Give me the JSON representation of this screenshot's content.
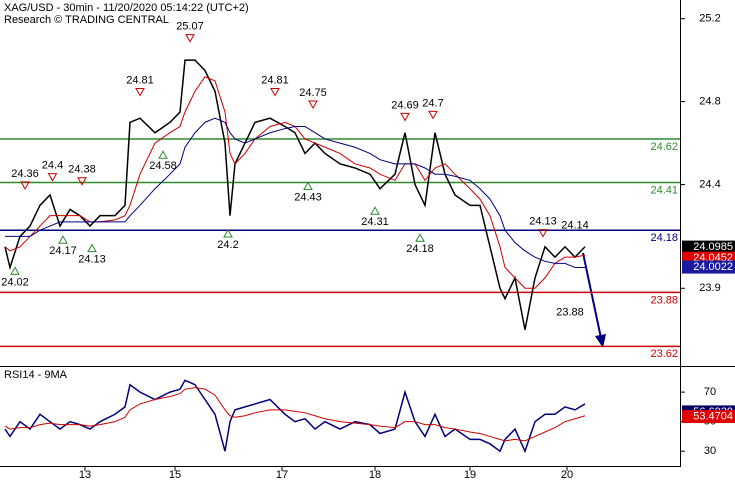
{
  "chart_data": {
    "type": "line",
    "title": "XAG/USD - 30min - 11/20/2020 05:14:22 (UTC+2)",
    "subtitle": "Research © TRADING CENTRAL",
    "xlim": [
      0,
      136
    ],
    "xticks": [
      {
        "value": 17,
        "label": "13"
      },
      {
        "value": 35,
        "label": "15"
      },
      {
        "value": 56.4,
        "label": "17"
      },
      {
        "value": 75,
        "label": "18"
      },
      {
        "value": 94,
        "label": "19"
      },
      {
        "value": 113.4,
        "label": "20"
      }
    ],
    "ylim": [
      23.53,
      25.29
    ],
    "yticks": [
      25.2,
      24.8,
      24.4,
      23.9
    ],
    "x": [
      1,
      2,
      4,
      6,
      8,
      10,
      12,
      14,
      16,
      18,
      20,
      23,
      25,
      26,
      28,
      31,
      34,
      36,
      37,
      39,
      41,
      43,
      45,
      46,
      47,
      49,
      51,
      54,
      57,
      59,
      61,
      63,
      65,
      68,
      71,
      74,
      76,
      79,
      81,
      83,
      85,
      87,
      89,
      91,
      94,
      96,
      98,
      100,
      101,
      103,
      105,
      107,
      109,
      111,
      113,
      115,
      117
    ],
    "series": [
      {
        "color": "#000000",
        "values": [
          24.1,
          24.0,
          24.15,
          24.2,
          24.3,
          24.35,
          24.2,
          24.28,
          24.25,
          24.2,
          24.25,
          24.25,
          24.3,
          24.7,
          24.72,
          24.65,
          24.7,
          24.75,
          25.0,
          25.0,
          24.95,
          24.85,
          24.6,
          24.25,
          24.5,
          24.6,
          24.7,
          24.72,
          24.68,
          24.65,
          24.55,
          24.6,
          24.55,
          24.5,
          24.48,
          24.45,
          24.38,
          24.45,
          24.65,
          24.4,
          24.3,
          24.65,
          24.45,
          24.35,
          24.3,
          24.3,
          24.1,
          23.9,
          23.85,
          23.95,
          23.7,
          23.95,
          24.1,
          24.05,
          24.1,
          24.05,
          24.1
        ]
      },
      {
        "color": "#cc0000",
        "values": [
          24.1,
          24.08,
          24.1,
          24.15,
          24.2,
          24.25,
          24.25,
          24.25,
          24.25,
          24.22,
          24.22,
          24.23,
          24.25,
          24.3,
          24.45,
          24.6,
          24.65,
          24.68,
          24.75,
          24.85,
          24.92,
          24.9,
          24.75,
          24.55,
          24.5,
          24.55,
          24.62,
          24.68,
          24.7,
          24.68,
          24.62,
          24.6,
          24.58,
          24.55,
          24.5,
          24.48,
          24.45,
          24.42,
          24.5,
          24.5,
          24.42,
          24.48,
          24.5,
          24.45,
          24.38,
          24.33,
          24.25,
          24.1,
          24.0,
          23.95,
          23.9,
          23.9,
          23.95,
          24.02,
          24.05,
          24.05,
          24.06
        ]
      },
      {
        "color": "#000080",
        "values": [
          24.15,
          24.15,
          24.15,
          24.15,
          24.18,
          24.2,
          24.22,
          24.22,
          24.22,
          24.22,
          24.22,
          24.22,
          24.22,
          24.25,
          24.3,
          24.38,
          24.45,
          24.5,
          24.58,
          24.65,
          24.7,
          24.72,
          24.7,
          24.65,
          24.62,
          24.6,
          24.62,
          24.65,
          24.67,
          24.68,
          24.68,
          24.65,
          24.62,
          24.6,
          24.58,
          24.55,
          24.52,
          24.5,
          24.5,
          24.5,
          24.48,
          24.45,
          24.45,
          24.44,
          24.42,
          24.38,
          24.33,
          24.25,
          24.18,
          24.12,
          24.08,
          24.05,
          24.03,
          24.02,
          24.02,
          24.0,
          24.0
        ]
      }
    ],
    "levels": [
      {
        "value": 24.62,
        "color": "#2e8b2e"
      },
      {
        "value": 24.41,
        "color": "#2e8b2e"
      },
      {
        "value": 24.18,
        "color": "#000080"
      },
      {
        "value": 23.88,
        "color": "#cc0000"
      },
      {
        "value": 23.62,
        "color": "#cc0000"
      }
    ],
    "price_markers": [
      {
        "value": 24.0985,
        "color": "#000000"
      },
      {
        "value": 24.0452,
        "color": "#e00000"
      },
      {
        "value": 24.0022,
        "color": "#1a1aa0"
      }
    ],
    "annotations": [
      {
        "x": 3,
        "price": 24.02,
        "marker": "low"
      },
      {
        "x": 5,
        "price": 24.36,
        "marker": "high"
      },
      {
        "x": 10.5,
        "price": 24.4,
        "marker": "high"
      },
      {
        "x": 12.6,
        "price": 24.17,
        "marker": "low"
      },
      {
        "x": 16.4,
        "price": 24.38,
        "marker": "high"
      },
      {
        "x": 18.4,
        "price": 24.13,
        "marker": "low"
      },
      {
        "x": 28,
        "price": 24.81,
        "marker": "high"
      },
      {
        "x": 32.6,
        "price": 24.58,
        "marker": "low"
      },
      {
        "x": 38,
        "price": 25.07,
        "marker": "high"
      },
      {
        "x": 45.6,
        "price": 24.2,
        "marker": "low"
      },
      {
        "x": 55,
        "price": 24.81,
        "marker": "high"
      },
      {
        "x": 61.6,
        "price": 24.43,
        "marker": "low"
      },
      {
        "x": 62.6,
        "price": 24.75,
        "marker": "high"
      },
      {
        "x": 75,
        "price": 24.31,
        "marker": "low"
      },
      {
        "x": 81,
        "price": 24.69,
        "marker": "high"
      },
      {
        "x": 84,
        "price": 24.18,
        "marker": "low"
      },
      {
        "x": 86.6,
        "price": 24.7,
        "marker": "high"
      },
      {
        "x": 108.6,
        "price": 24.13,
        "marker": "high"
      },
      {
        "x": 115,
        "price": 24.14,
        "marker": "text"
      },
      {
        "x": 114,
        "price": 23.88,
        "marker": "text"
      }
    ],
    "rsi": {
      "title": "RSI14 - 9MA",
      "ylim": [
        20,
        87
      ],
      "yticks": [
        70,
        50,
        30
      ],
      "series": [
        {
          "color": "#000080",
          "values": [
            45,
            40,
            50,
            45,
            55,
            50,
            45,
            50,
            48,
            45,
            50,
            55,
            60,
            75,
            70,
            65,
            70,
            72,
            78,
            75,
            65,
            55,
            30,
            50,
            58,
            60,
            62,
            65,
            55,
            50,
            52,
            45,
            50,
            45,
            50,
            48,
            42,
            45,
            70,
            50,
            40,
            55,
            40,
            45,
            38,
            38,
            35,
            30,
            38,
            45,
            30,
            50,
            55,
            55,
            60,
            58,
            62
          ]
        },
        {
          "color": "#cc0000",
          "values": [
            47,
            45,
            46,
            46,
            48,
            49,
            48,
            48,
            48,
            47,
            48,
            50,
            53,
            58,
            62,
            65,
            67,
            69,
            72,
            73,
            72,
            68,
            58,
            54,
            53,
            54,
            56,
            58,
            58,
            57,
            56,
            54,
            52,
            50,
            49,
            48,
            47,
            46,
            50,
            50,
            48,
            48,
            46,
            45,
            43,
            42,
            40,
            38,
            37,
            38,
            37,
            40,
            43,
            46,
            50,
            52,
            54
          ]
        }
      ],
      "markers": [
        {
          "value": 56.6039,
          "color": "#000060"
        },
        {
          "value": 53.4704,
          "color": "#e00000"
        }
      ]
    }
  }
}
